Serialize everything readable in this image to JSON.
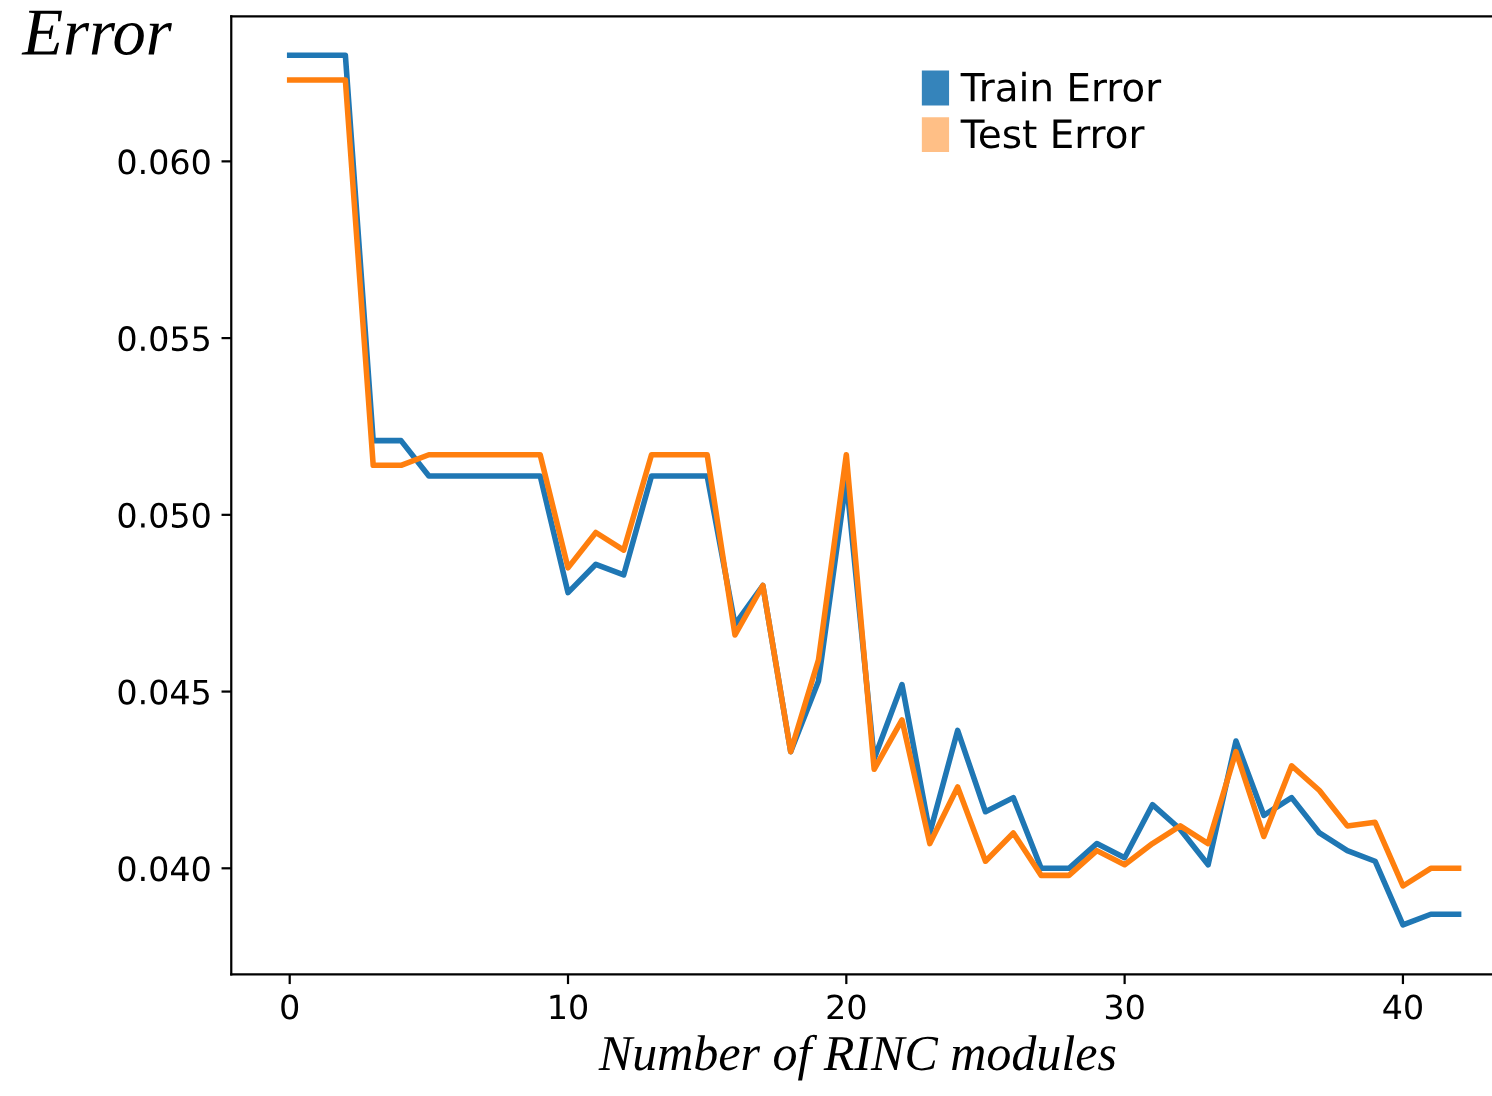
{
  "chart_data": {
    "type": "line",
    "ylabel": "Error",
    "xlabel": "Number of RINC modules",
    "x": [
      0,
      1,
      2,
      3,
      4,
      5,
      6,
      7,
      8,
      9,
      10,
      11,
      12,
      13,
      14,
      15,
      16,
      17,
      18,
      19,
      20,
      21,
      22,
      23,
      24,
      25,
      26,
      27,
      28,
      29,
      30,
      31,
      32,
      33,
      34,
      35,
      36,
      37,
      38,
      39,
      40,
      41,
      42
    ],
    "series": [
      {
        "name": "Train Error",
        "color": "#1f77b4",
        "values": [
          0.063,
          0.063,
          0.063,
          0.0521,
          0.0521,
          0.0511,
          0.0511,
          0.0511,
          0.0511,
          0.0511,
          0.0478,
          0.0486,
          0.0483,
          0.0511,
          0.0511,
          0.0511,
          0.0469,
          0.048,
          0.0433,
          0.0453,
          0.051,
          0.0431,
          0.0452,
          0.041,
          0.0439,
          0.0416,
          0.042,
          0.04,
          0.04,
          0.0407,
          0.0403,
          0.0418,
          0.0411,
          0.0401,
          0.0436,
          0.0415,
          0.042,
          0.041,
          0.0405,
          0.0402,
          0.0384,
          0.0387,
          0.0387
        ]
      },
      {
        "name": "Test Error",
        "color": "#ff7f0e",
        "values": [
          0.0623,
          0.0623,
          0.0623,
          0.0514,
          0.0514,
          0.0517,
          0.0517,
          0.0517,
          0.0517,
          0.0517,
          0.0485,
          0.0495,
          0.049,
          0.0517,
          0.0517,
          0.0517,
          0.0466,
          0.048,
          0.0433,
          0.0459,
          0.0517,
          0.0428,
          0.0442,
          0.0407,
          0.0423,
          0.0402,
          0.041,
          0.0398,
          0.0398,
          0.0405,
          0.0401,
          0.0407,
          0.0412,
          0.0407,
          0.0433,
          0.0409,
          0.0429,
          0.0422,
          0.0412,
          0.0413,
          0.0395,
          0.04,
          0.04
        ]
      }
    ],
    "xlim": [
      -2.1,
      43.2
    ],
    "ylim": [
      0.037,
      0.0641
    ],
    "xticks": [
      0,
      10,
      20,
      30,
      40
    ],
    "yticks": [
      {
        "value": 0.04,
        "label": "0.040"
      },
      {
        "value": 0.045,
        "label": "0.045"
      },
      {
        "value": 0.05,
        "label": "0.050"
      },
      {
        "value": 0.055,
        "label": "0.055"
      },
      {
        "value": 0.06,
        "label": "0.060"
      }
    ],
    "grid": false,
    "legend": "top right",
    "marker": "none",
    "line_style": "solid"
  }
}
